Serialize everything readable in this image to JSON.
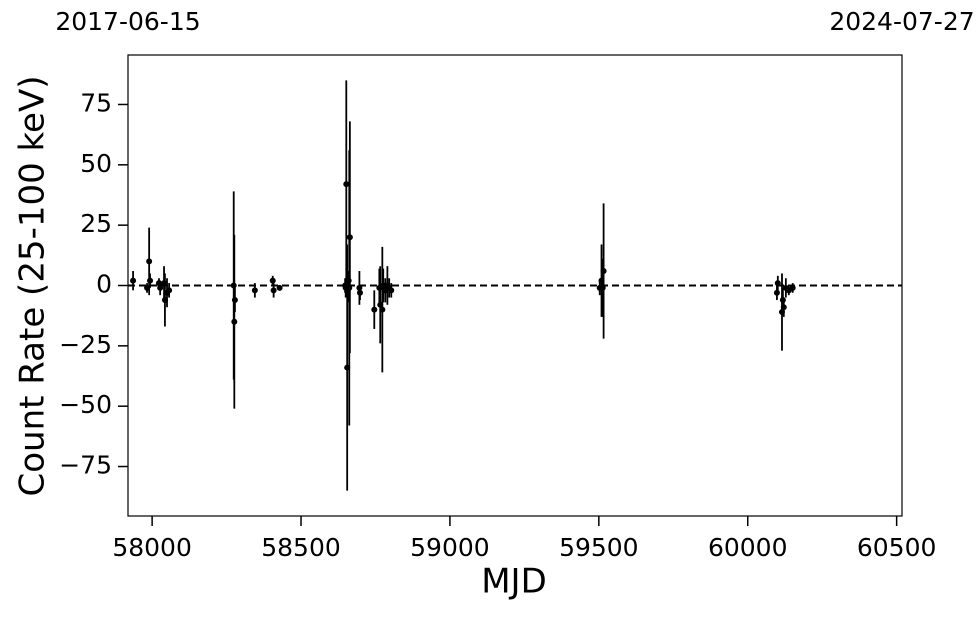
{
  "chart_data": {
    "type": "errorbar",
    "xlabel": "MJD",
    "ylabel": "Count Rate (25-100 keV)",
    "xlim": [
      57919,
      60518
    ],
    "ylim": [
      -95.5,
      95.5
    ],
    "xticks": [
      58000,
      58500,
      59000,
      59500,
      60000,
      60500
    ],
    "yticks": [
      {
        "value": -75,
        "label": "−75"
      },
      {
        "value": -50,
        "label": "−50"
      },
      {
        "value": -25,
        "label": "−25"
      },
      0,
      25,
      50,
      75
    ],
    "x2ticks": [
      {
        "value": 57919,
        "label": "2017-06-15"
      },
      {
        "value": 60518,
        "label": "2024-07-27"
      }
    ],
    "hline": 0,
    "color": "#000000",
    "x": [
      57936,
      57983,
      57990,
      57993,
      58023,
      58027,
      58040,
      58043,
      58050,
      58057,
      58274,
      58278,
      58276,
      58345,
      58405,
      58408,
      58428,
      58652,
      58655,
      58650,
      58657,
      58660,
      58664,
      58662,
      58648,
      58696,
      58698,
      58746,
      58763,
      58766,
      58773,
      58776,
      58783,
      58790,
      58796,
      58803,
      59503,
      59509,
      59513,
      59516,
      60098,
      60101,
      60115,
      60118,
      60121,
      60128,
      60138,
      60151
    ],
    "values": [
      2,
      -1,
      10,
      2,
      1,
      -1,
      1,
      -6,
      -3,
      -2,
      0,
      -6,
      -15,
      -2,
      2,
      -2,
      -1,
      42,
      -34,
      -1,
      -2,
      2,
      20,
      -1,
      0,
      -1,
      -3,
      -10,
      -1,
      -8,
      -10,
      0,
      -2,
      0,
      -1,
      -2,
      -1,
      2,
      -1,
      6,
      -3,
      1,
      -11,
      -6,
      -9,
      -1,
      -2,
      -1
    ],
    "errors": [
      4,
      2,
      14,
      3,
      2,
      3,
      7,
      11,
      6,
      3,
      39,
      5,
      36,
      3,
      2,
      3,
      1,
      43,
      51,
      4,
      5,
      4,
      48,
      57,
      3,
      7,
      3,
      8,
      8,
      16,
      26,
      7,
      5,
      8,
      4,
      3,
      3,
      15,
      12,
      28,
      3,
      3,
      16,
      5,
      4,
      4,
      2,
      2
    ]
  }
}
